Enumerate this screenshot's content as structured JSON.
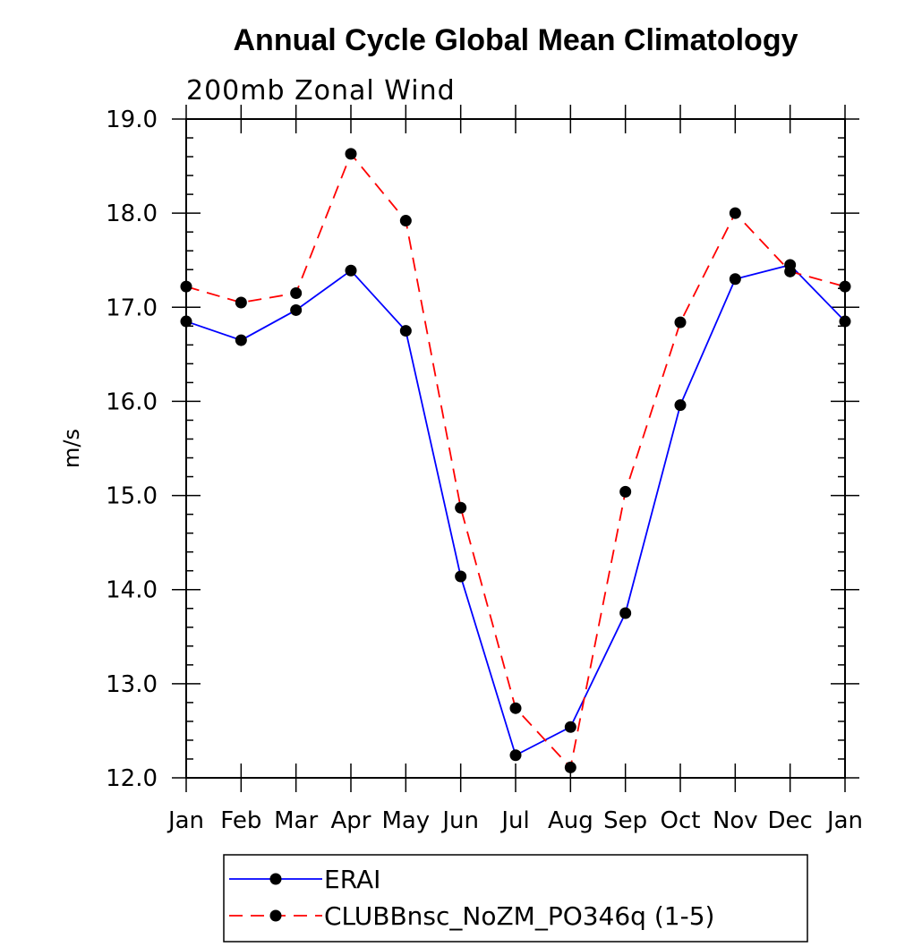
{
  "chart_data": {
    "type": "line",
    "title": "Annual Cycle Global Mean Climatology",
    "subtitle": "200mb Zonal Wind",
    "ylabel": "m/s",
    "xlabel": "",
    "categories": [
      "Jan",
      "Feb",
      "Mar",
      "Apr",
      "May",
      "Jun",
      "Jul",
      "Aug",
      "Sep",
      "Oct",
      "Nov",
      "Dec",
      "Jan"
    ],
    "ylim": [
      12.0,
      19.0
    ],
    "yticks": [
      "12.0",
      "13.0",
      "14.0",
      "15.0",
      "16.0",
      "17.0",
      "18.0",
      "19.0"
    ],
    "grid": false,
    "legend_position": "bottom",
    "series": [
      {
        "name": "ERAI",
        "color": "#0000ff",
        "dash": "solid",
        "values": [
          16.85,
          16.65,
          16.97,
          17.39,
          16.75,
          14.14,
          12.24,
          12.54,
          13.75,
          15.96,
          17.3,
          17.45,
          16.85
        ]
      },
      {
        "name": "CLUBBnsc_NoZM_PO346q (1-5)",
        "color": "#ff0000",
        "dash": "dashed",
        "values": [
          17.22,
          17.05,
          17.15,
          18.63,
          17.92,
          14.87,
          12.74,
          12.11,
          15.04,
          16.84,
          18.0,
          17.38,
          17.22
        ]
      }
    ]
  }
}
